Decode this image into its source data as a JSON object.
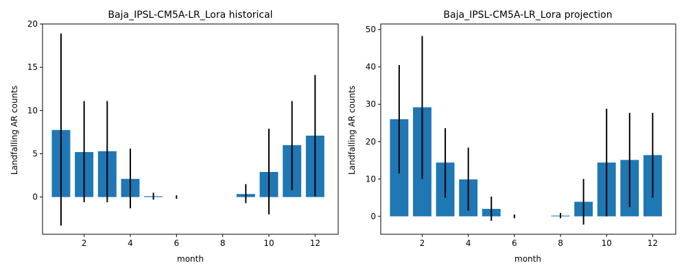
{
  "chart_data": [
    {
      "type": "bar",
      "title": "Baja_IPSL-CM5A-LR_Lora historical",
      "xlabel": "month",
      "ylabel": "Landfalling AR counts",
      "x": [
        1,
        2,
        3,
        4,
        5,
        6,
        7,
        8,
        9,
        10,
        11,
        12
      ],
      "values": [
        7.75,
        5.2,
        5.3,
        2.1,
        0.1,
        0.0,
        0.0,
        0.0,
        0.35,
        2.9,
        6.0,
        7.1
      ],
      "error_low": [
        -3.3,
        -0.6,
        -0.6,
        -1.3,
        -0.3,
        -0.2,
        0.0,
        0.0,
        -0.7,
        -2.0,
        0.8,
        0.1
      ],
      "error_high": [
        18.9,
        11.1,
        11.1,
        5.6,
        0.5,
        0.2,
        0.0,
        0.0,
        1.5,
        7.9,
        11.1,
        14.1
      ],
      "xlim": [
        0.2,
        13.0
      ],
      "ylim": [
        -4.3,
        20
      ],
      "xticks": [
        2,
        4,
        6,
        8,
        10,
        12
      ],
      "yticks": [
        0,
        5,
        10,
        15,
        20
      ],
      "grid": false,
      "bar_color": "#1f77b4",
      "error_color": "#000000"
    },
    {
      "type": "bar",
      "title": "Baja_IPSL-CM5A-LR_Lora projection",
      "xlabel": "month",
      "ylabel": "Landfalling AR counts",
      "x": [
        1,
        2,
        3,
        4,
        5,
        6,
        7,
        8,
        9,
        10,
        11,
        12
      ],
      "values": [
        26.0,
        29.2,
        14.4,
        9.9,
        2.0,
        0.0,
        0.0,
        0.2,
        3.9,
        14.4,
        15.1,
        16.4
      ],
      "error_low": [
        11.5,
        10.0,
        5.0,
        1.5,
        -1.2,
        -0.5,
        0.0,
        -0.5,
        -2.2,
        0.0,
        2.5,
        5.0
      ],
      "error_high": [
        40.5,
        48.3,
        23.6,
        18.4,
        5.3,
        0.5,
        0.0,
        0.9,
        10.0,
        28.8,
        27.7,
        27.7
      ],
      "xlim": [
        0.2,
        13.0
      ],
      "ylim": [
        -4.8,
        51.5
      ],
      "xticks": [
        2,
        4,
        6,
        8,
        10,
        12
      ],
      "yticks": [
        0,
        10,
        20,
        30,
        40,
        50
      ],
      "grid": false,
      "bar_color": "#1f77b4",
      "error_color": "#000000"
    }
  ]
}
